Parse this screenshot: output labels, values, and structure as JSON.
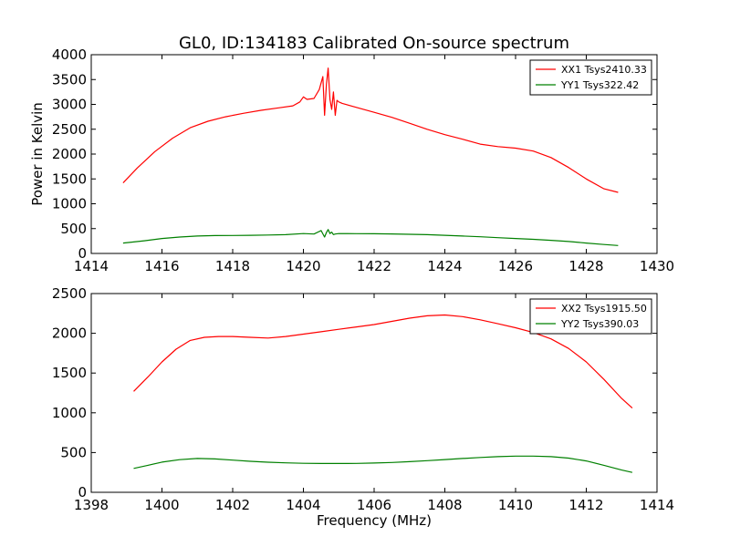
{
  "figure": {
    "title": "GL0, ID:134183 Calibrated On-source spectrum"
  },
  "chart_data": [
    {
      "type": "line",
      "title": "GL0, ID:134183 Calibrated On-source spectrum",
      "xlabel": "",
      "ylabel": "Power in Kelvin",
      "xlim": [
        1414,
        1430
      ],
      "ylim": [
        0,
        4000
      ],
      "xticks": [
        1414,
        1416,
        1418,
        1420,
        1422,
        1424,
        1426,
        1428,
        1430
      ],
      "yticks": [
        0,
        500,
        1000,
        1500,
        2000,
        2500,
        3000,
        3500,
        4000
      ],
      "grid": false,
      "legend_position": "top-right",
      "series": [
        {
          "name": "XX1 Tsys2410.33",
          "color": "#ff0000",
          "x": [
            1414.9,
            1415.3,
            1415.8,
            1416.3,
            1416.8,
            1417.3,
            1417.8,
            1418.3,
            1418.8,
            1419.3,
            1419.7,
            1419.9,
            1420.0,
            1420.1,
            1420.3,
            1420.45,
            1420.55,
            1420.6,
            1420.65,
            1420.7,
            1420.75,
            1420.8,
            1420.85,
            1420.9,
            1420.95,
            1421.0,
            1421.1,
            1421.5,
            1422.0,
            1422.5,
            1423.0,
            1423.5,
            1424.0,
            1424.5,
            1425.0,
            1425.5,
            1426.0,
            1426.5,
            1427.0,
            1427.5,
            1428.0,
            1428.5,
            1428.9
          ],
          "values": [
            1420,
            1720,
            2050,
            2320,
            2530,
            2660,
            2750,
            2820,
            2880,
            2930,
            2970,
            3050,
            3150,
            3100,
            3120,
            3300,
            3560,
            2780,
            3400,
            3730,
            3100,
            2900,
            3250,
            2780,
            3080,
            3050,
            3020,
            2940,
            2840,
            2740,
            2620,
            2500,
            2390,
            2300,
            2200,
            2150,
            2120,
            2060,
            1930,
            1730,
            1500,
            1300,
            1230
          ]
        },
        {
          "name": "YY1 Tsys322.42",
          "color": "#008000",
          "x": [
            1414.9,
            1415.5,
            1416.0,
            1416.5,
            1417.0,
            1417.5,
            1418.0,
            1418.5,
            1419.0,
            1419.5,
            1420.0,
            1420.3,
            1420.5,
            1420.6,
            1420.65,
            1420.7,
            1420.75,
            1420.8,
            1420.85,
            1420.9,
            1421.0,
            1421.5,
            1422.0,
            1422.5,
            1423.0,
            1423.5,
            1424.0,
            1424.5,
            1425.0,
            1425.5,
            1426.0,
            1426.5,
            1427.0,
            1427.5,
            1428.0,
            1428.5,
            1428.9
          ],
          "values": [
            210,
            255,
            300,
            330,
            350,
            360,
            362,
            365,
            370,
            378,
            400,
            390,
            460,
            330,
            420,
            480,
            400,
            430,
            380,
            390,
            400,
            398,
            396,
            392,
            385,
            378,
            365,
            350,
            335,
            318,
            300,
            285,
            265,
            240,
            210,
            180,
            160
          ]
        }
      ]
    },
    {
      "type": "line",
      "title": "",
      "xlabel": "Frequency (MHz)",
      "ylabel": "",
      "xlim": [
        1398,
        1414
      ],
      "ylim": [
        0,
        2500
      ],
      "xticks": [
        1398,
        1400,
        1402,
        1404,
        1406,
        1408,
        1410,
        1412,
        1414
      ],
      "yticks": [
        0,
        500,
        1000,
        1500,
        2000,
        2500
      ],
      "grid": false,
      "legend_position": "top-right",
      "series": [
        {
          "name": "XX2 Tsys1915.50",
          "color": "#ff0000",
          "x": [
            1399.2,
            1399.6,
            1400.0,
            1400.4,
            1400.8,
            1401.2,
            1401.6,
            1402.0,
            1402.5,
            1403.0,
            1403.5,
            1404.0,
            1404.5,
            1405.0,
            1405.5,
            1406.0,
            1406.5,
            1407.0,
            1407.5,
            1408.0,
            1408.5,
            1409.0,
            1409.5,
            1410.0,
            1410.5,
            1411.0,
            1411.5,
            1412.0,
            1412.5,
            1413.0,
            1413.3
          ],
          "values": [
            1270,
            1450,
            1640,
            1800,
            1910,
            1950,
            1960,
            1960,
            1950,
            1940,
            1960,
            1990,
            2020,
            2050,
            2080,
            2110,
            2150,
            2190,
            2220,
            2230,
            2210,
            2170,
            2120,
            2070,
            2010,
            1930,
            1810,
            1640,
            1420,
            1180,
            1060
          ]
        },
        {
          "name": "YY2 Tsys390.03",
          "color": "#008000",
          "x": [
            1399.2,
            1399.6,
            1400.0,
            1400.5,
            1401.0,
            1401.5,
            1402.0,
            1402.5,
            1403.0,
            1403.5,
            1404.0,
            1404.5,
            1405.0,
            1405.5,
            1406.0,
            1406.5,
            1407.0,
            1407.5,
            1408.0,
            1408.5,
            1409.0,
            1409.5,
            1410.0,
            1410.5,
            1411.0,
            1411.5,
            1412.0,
            1412.5,
            1413.0,
            1413.3
          ],
          "values": [
            300,
            340,
            380,
            410,
            425,
            420,
            405,
            390,
            378,
            370,
            365,
            362,
            362,
            364,
            368,
            375,
            385,
            398,
            412,
            425,
            438,
            448,
            455,
            455,
            448,
            430,
            395,
            340,
            280,
            250
          ]
        }
      ]
    }
  ]
}
